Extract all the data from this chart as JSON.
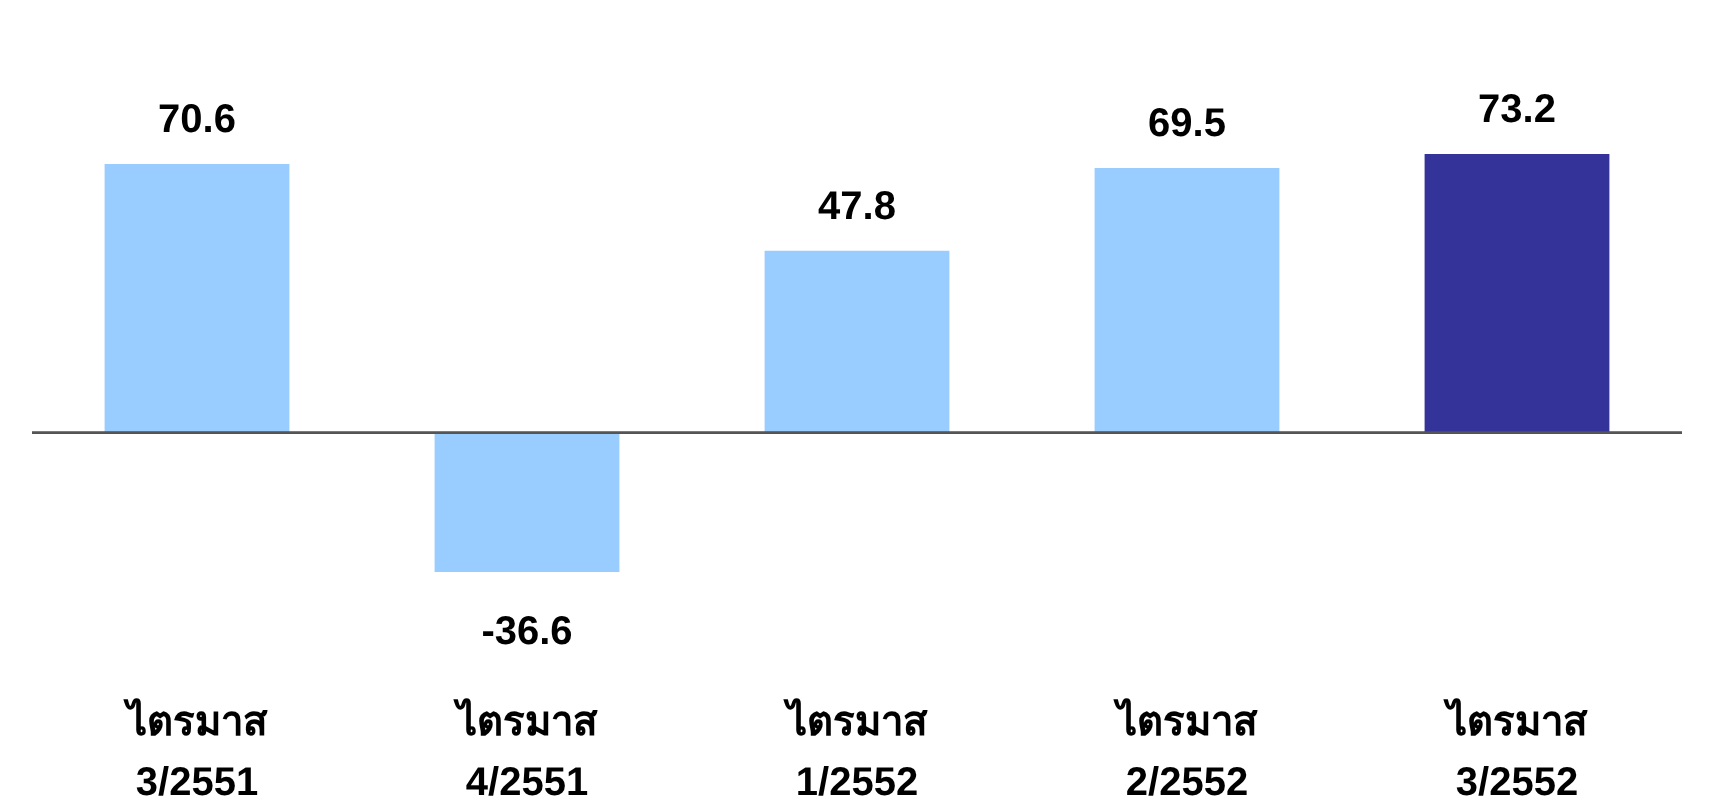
{
  "chart_data": {
    "type": "bar",
    "categories": [
      "ไตรมาส 3/2551",
      "ไตรมาส 4/2551",
      "ไตรมาส 1/2552",
      "ไตรมาส 2/2552",
      "ไตรมาส 3/2552"
    ],
    "values": [
      70.6,
      -36.6,
      47.8,
      69.5,
      73.2
    ],
    "colors": [
      "#99ccff",
      "#99ccff",
      "#99ccff",
      "#99ccff",
      "#333399"
    ],
    "data_labels": true
  }
}
